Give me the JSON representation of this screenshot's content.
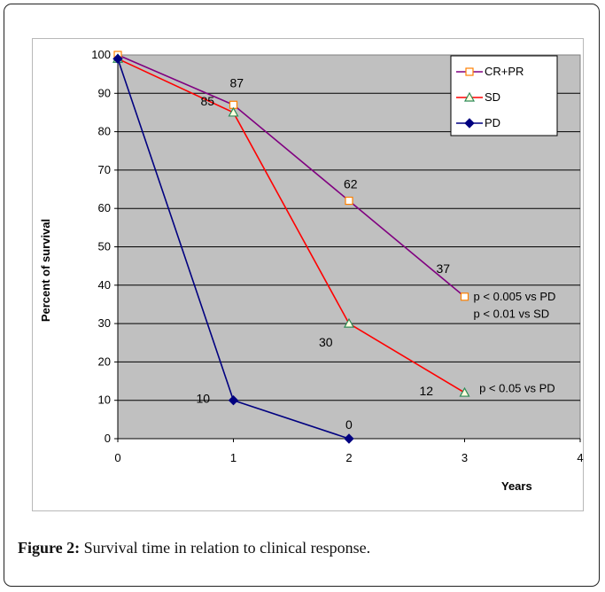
{
  "caption": {
    "label": "Figure 2:",
    "text": "Survival time in relation to clinical response."
  },
  "chart_data": {
    "type": "line",
    "title": "",
    "xlabel": "Years",
    "ylabel": "Percent of survival",
    "xlim": [
      0,
      4
    ],
    "ylim": [
      0,
      100
    ],
    "x_ticks": [
      "0",
      "1",
      "2",
      "3",
      "4"
    ],
    "y_ticks": [
      "0",
      "10",
      "20",
      "30",
      "40",
      "50",
      "60",
      "70",
      "80",
      "90",
      "100"
    ],
    "grid": true,
    "plot_background": "#c0c0c0",
    "legend_position": "top-right",
    "series": [
      {
        "name": "CR+PR",
        "color": "#800080",
        "marker": "square",
        "marker_color": "#ff8000",
        "x": [
          0,
          1,
          2,
          3
        ],
        "y": [
          100,
          87,
          62,
          37
        ],
        "labels": [
          "",
          "87",
          "62",
          "37"
        ]
      },
      {
        "name": "SD",
        "color": "#ff0000",
        "marker": "triangle",
        "marker_color": "#2e8b57",
        "x": [
          0,
          1,
          2,
          3
        ],
        "y": [
          99,
          85,
          30,
          12
        ],
        "labels": [
          "",
          "85",
          "30",
          "12"
        ]
      },
      {
        "name": "PD",
        "color": "#000080",
        "marker": "diamond",
        "marker_color": "#000080",
        "x": [
          0,
          1,
          2
        ],
        "y": [
          99,
          10,
          0
        ],
        "labels": [
          "",
          "10",
          "0"
        ]
      }
    ],
    "annotations": [
      {
        "text": "p < 0.005 vs PD",
        "x": 3.1,
        "y": 37
      },
      {
        "text": "p < 0.01   vs SD",
        "x": 3.1,
        "y": 32.5
      },
      {
        "text": "p < 0.05 vs PD",
        "x": 3.15,
        "y": 13
      }
    ]
  }
}
